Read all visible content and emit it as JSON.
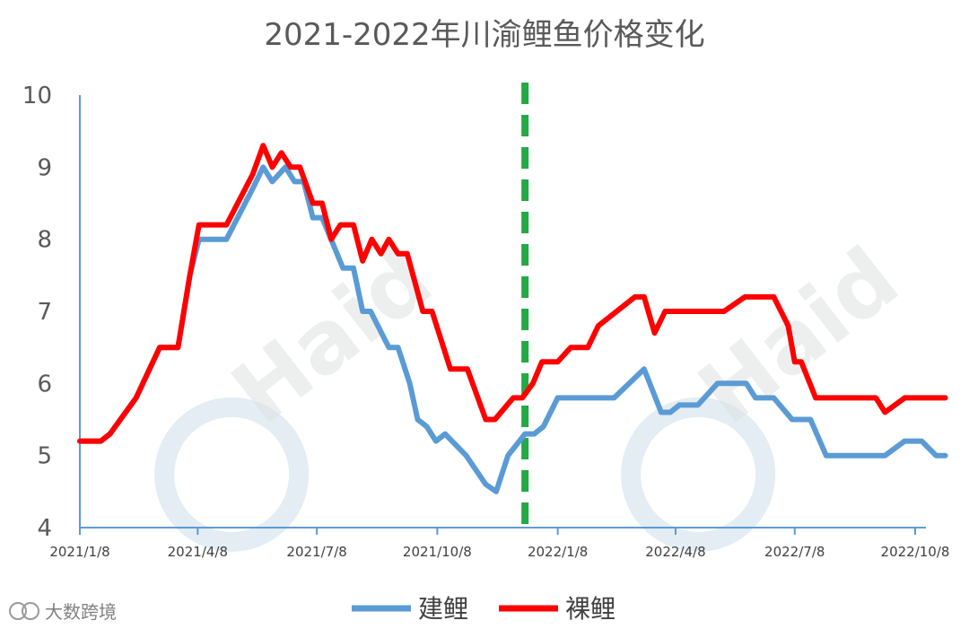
{
  "chart_data": {
    "type": "line",
    "title": "2021-2022年川渝鲤鱼价格变化",
    "xlabel": "",
    "ylabel": "",
    "ylim": [
      4,
      10
    ],
    "yticks": [
      "10",
      "9",
      "8",
      "7",
      "6",
      "5",
      "4"
    ],
    "xlim": [
      "2021-01-08",
      "2022-10-08"
    ],
    "xticks": [
      "2021/1/8",
      "2021/4/8",
      "2021/7/8",
      "2021/10/8",
      "2022/1/8",
      "2022/4/8",
      "2022/7/8",
      "2022/10/8"
    ],
    "marker_line": {
      "date": "2021-12-14",
      "style": "dashed",
      "color": "#22aa44"
    },
    "legend": "bottom",
    "grid": false,
    "series": [
      {
        "name": "建鲤",
        "color": "#5b9bd5",
        "points": [
          [
            "2021-01-08",
            5.2
          ],
          [
            "2021-01-24",
            5.2
          ],
          [
            "2021-01-31",
            5.3
          ],
          [
            "2021-02-20",
            5.8
          ],
          [
            "2021-03-10",
            6.5
          ],
          [
            "2021-03-24",
            6.5
          ],
          [
            "2021-04-02",
            7.5
          ],
          [
            "2021-04-09",
            8.0
          ],
          [
            "2021-04-30",
            8.0
          ],
          [
            "2021-05-20",
            8.7
          ],
          [
            "2021-05-28",
            9.0
          ],
          [
            "2021-06-04",
            8.8
          ],
          [
            "2021-06-14",
            9.0
          ],
          [
            "2021-06-21",
            8.8
          ],
          [
            "2021-06-28",
            8.8
          ],
          [
            "2021-07-05",
            8.3
          ],
          [
            "2021-07-12",
            8.3
          ],
          [
            "2021-07-28",
            7.6
          ],
          [
            "2021-08-05",
            7.6
          ],
          [
            "2021-08-12",
            7.0
          ],
          [
            "2021-08-18",
            7.0
          ],
          [
            "2021-09-01",
            6.5
          ],
          [
            "2021-09-08",
            6.5
          ],
          [
            "2021-09-17",
            6.0
          ],
          [
            "2021-09-23",
            5.5
          ],
          [
            "2021-09-30",
            5.4
          ],
          [
            "2021-10-07",
            5.2
          ],
          [
            "2021-10-14",
            5.3
          ],
          [
            "2021-10-30",
            5.0
          ],
          [
            "2021-11-14",
            4.6
          ],
          [
            "2021-11-22",
            4.5
          ],
          [
            "2021-12-01",
            5.0
          ],
          [
            "2021-12-14",
            5.3
          ],
          [
            "2021-12-21",
            5.3
          ],
          [
            "2021-12-28",
            5.4
          ],
          [
            "2022-01-08",
            5.8
          ],
          [
            "2022-01-31",
            5.8
          ],
          [
            "2022-02-20",
            5.8
          ],
          [
            "2022-03-15",
            6.2
          ],
          [
            "2022-03-28",
            5.6
          ],
          [
            "2022-04-04",
            5.6
          ],
          [
            "2022-04-11",
            5.7
          ],
          [
            "2022-04-25",
            5.7
          ],
          [
            "2022-05-10",
            6.0
          ],
          [
            "2022-06-01",
            6.0
          ],
          [
            "2022-06-08",
            5.8
          ],
          [
            "2022-06-22",
            5.8
          ],
          [
            "2022-07-06",
            5.5
          ],
          [
            "2022-07-20",
            5.5
          ],
          [
            "2022-08-01",
            5.0
          ],
          [
            "2022-08-21",
            5.0
          ],
          [
            "2022-09-15",
            5.0
          ],
          [
            "2022-09-30",
            5.2
          ],
          [
            "2022-10-13",
            5.2
          ],
          [
            "2022-10-24",
            5.0
          ],
          [
            "2022-10-31",
            5.0
          ]
        ]
      },
      {
        "name": "裸鲤",
        "color": "#ff0000",
        "points": [
          [
            "2021-01-08",
            5.2
          ],
          [
            "2021-01-24",
            5.2
          ],
          [
            "2021-01-31",
            5.3
          ],
          [
            "2021-02-20",
            5.8
          ],
          [
            "2021-03-10",
            6.5
          ],
          [
            "2021-03-24",
            6.5
          ],
          [
            "2021-04-02",
            7.5
          ],
          [
            "2021-04-09",
            8.2
          ],
          [
            "2021-04-30",
            8.2
          ],
          [
            "2021-05-20",
            8.9
          ],
          [
            "2021-05-28",
            9.3
          ],
          [
            "2021-06-04",
            9.0
          ],
          [
            "2021-06-11",
            9.2
          ],
          [
            "2021-06-18",
            9.0
          ],
          [
            "2021-06-25",
            9.0
          ],
          [
            "2021-07-05",
            8.5
          ],
          [
            "2021-07-12",
            8.5
          ],
          [
            "2021-07-19",
            8.0
          ],
          [
            "2021-07-26",
            8.2
          ],
          [
            "2021-08-05",
            8.2
          ],
          [
            "2021-08-12",
            7.7
          ],
          [
            "2021-08-19",
            8.0
          ],
          [
            "2021-08-26",
            7.8
          ],
          [
            "2021-09-01",
            8.0
          ],
          [
            "2021-09-08",
            7.8
          ],
          [
            "2021-09-15",
            7.8
          ],
          [
            "2021-09-27",
            7.0
          ],
          [
            "2021-10-04",
            7.0
          ],
          [
            "2021-10-18",
            6.2
          ],
          [
            "2021-10-31",
            6.2
          ],
          [
            "2021-11-14",
            5.5
          ],
          [
            "2021-11-21",
            5.5
          ],
          [
            "2021-12-05",
            5.8
          ],
          [
            "2021-12-12",
            5.8
          ],
          [
            "2021-12-20",
            6.0
          ],
          [
            "2021-12-27",
            6.3
          ],
          [
            "2022-01-08",
            6.3
          ],
          [
            "2022-01-18",
            6.5
          ],
          [
            "2022-01-31",
            6.5
          ],
          [
            "2022-02-08",
            6.8
          ],
          [
            "2022-03-08",
            7.2
          ],
          [
            "2022-03-15",
            7.2
          ],
          [
            "2022-03-23",
            6.7
          ],
          [
            "2022-03-31",
            7.0
          ],
          [
            "2022-04-08",
            7.0
          ],
          [
            "2022-05-15",
            7.0
          ],
          [
            "2022-05-31",
            7.2
          ],
          [
            "2022-06-22",
            7.2
          ],
          [
            "2022-07-03",
            6.8
          ],
          [
            "2022-07-08",
            6.3
          ],
          [
            "2022-07-13",
            6.3
          ],
          [
            "2022-07-24",
            5.8
          ],
          [
            "2022-08-08",
            5.8
          ],
          [
            "2022-09-08",
            5.8
          ],
          [
            "2022-09-15",
            5.6
          ],
          [
            "2022-09-30",
            5.8
          ],
          [
            "2022-10-08",
            5.8
          ],
          [
            "2022-10-31",
            5.8
          ]
        ]
      }
    ]
  },
  "watermark": {
    "logo_text": "Haid",
    "caption": "大数跨境"
  }
}
